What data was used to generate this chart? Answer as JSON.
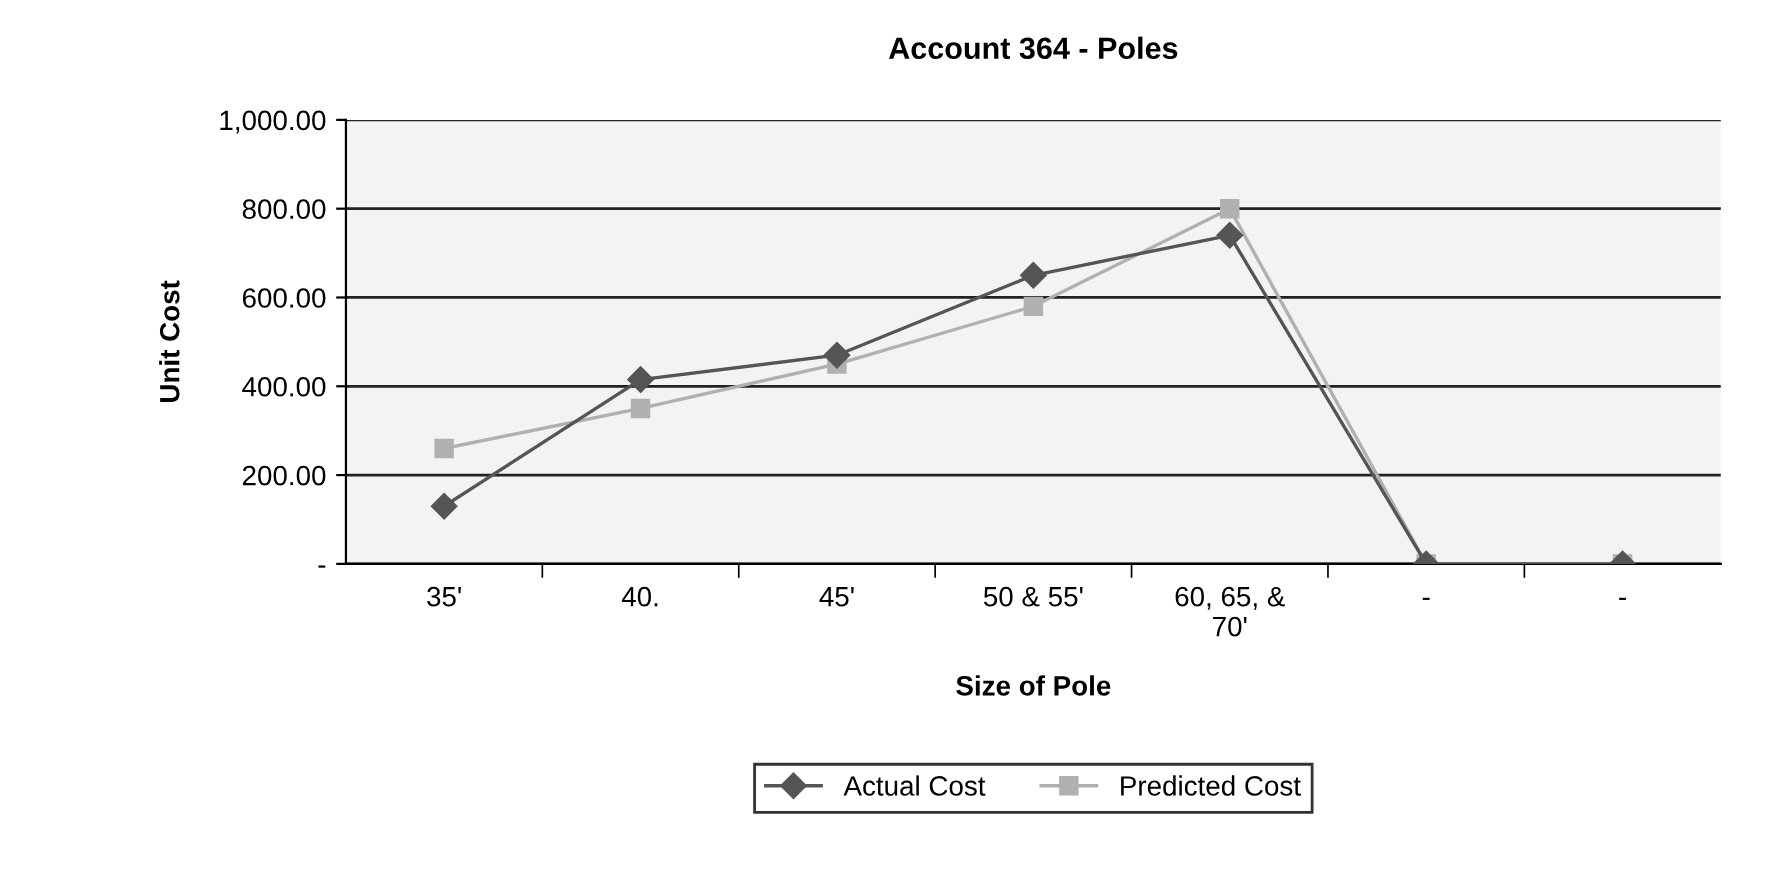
{
  "chart_data": {
    "type": "line",
    "title": "Account 364 - Poles",
    "xlabel": "Size of Pole",
    "ylabel": "Unit Cost",
    "categories": [
      "35'",
      "40.",
      "45'",
      "50 & 55'",
      "60, 65, &\n70'",
      "-",
      "-"
    ],
    "series": [
      {
        "name": "Actual Cost",
        "color": "#555555",
        "marker": "diamond",
        "values": [
          130,
          415,
          470,
          650,
          740,
          0,
          0
        ]
      },
      {
        "name": "Predicted Cost",
        "color": "#b0b0b0",
        "marker": "square",
        "values": [
          260,
          350,
          450,
          580,
          800,
          0,
          0
        ]
      }
    ],
    "ylim": [
      0,
      1000
    ],
    "yticks": [
      {
        "value": 0,
        "label": "-"
      },
      {
        "value": 200,
        "label": "200.00"
      },
      {
        "value": 400,
        "label": "400.00"
      },
      {
        "value": 600,
        "label": "600.00"
      },
      {
        "value": 800,
        "label": "800.00"
      },
      {
        "value": 1000,
        "label": "1,000.00"
      }
    ],
    "grid": "y",
    "legend": "bottom",
    "line_style": "solid"
  }
}
